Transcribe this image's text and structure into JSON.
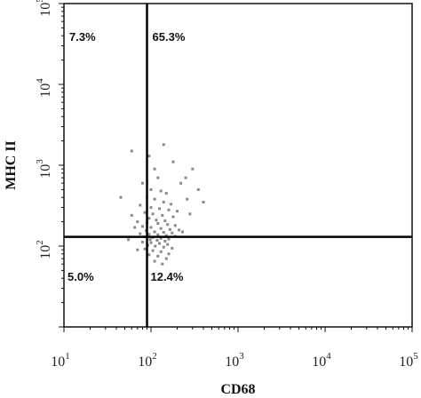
{
  "chart_data": {
    "type": "scatter",
    "xlabel": "CD68",
    "ylabel": "MHC II",
    "x_scale": "log",
    "y_scale": "log",
    "xlim": [
      10,
      100000
    ],
    "ylim": [
      10,
      100000
    ],
    "x_ticks": [
      {
        "value": 10,
        "base": "10",
        "exp": "1"
      },
      {
        "value": 100,
        "base": "10",
        "exp": "2"
      },
      {
        "value": 1000,
        "base": "10",
        "exp": "3"
      },
      {
        "value": 10000,
        "base": "10",
        "exp": "4"
      },
      {
        "value": 100000,
        "base": "10",
        "exp": "5"
      }
    ],
    "y_ticks": [
      {
        "value": 100,
        "base": "10",
        "exp": "2"
      },
      {
        "value": 1000,
        "base": "10",
        "exp": "3"
      },
      {
        "value": 10000,
        "base": "10",
        "exp": "4"
      },
      {
        "value": 100000,
        "base": "10",
        "exp": "5"
      }
    ],
    "gates": {
      "x": 90,
      "y": 130
    },
    "quadrants": [
      {
        "label": "7.3%",
        "position": "top-left"
      },
      {
        "label": "65.3%",
        "position": "top-right"
      },
      {
        "label": "5.0%",
        "position": "bottom-left"
      },
      {
        "label": "12.4%",
        "position": "bottom-right"
      }
    ],
    "points": [
      [
        95,
        1300
      ],
      [
        110,
        900
      ],
      [
        120,
        700
      ],
      [
        80,
        600
      ],
      [
        100,
        500
      ],
      [
        130,
        480
      ],
      [
        150,
        450
      ],
      [
        90,
        400
      ],
      [
        110,
        380
      ],
      [
        140,
        350
      ],
      [
        170,
        330
      ],
      [
        75,
        320
      ],
      [
        100,
        300
      ],
      [
        125,
        290
      ],
      [
        160,
        280
      ],
      [
        200,
        270
      ],
      [
        85,
        260
      ],
      [
        105,
        250
      ],
      [
        135,
        240
      ],
      [
        180,
        230
      ],
      [
        95,
        220
      ],
      [
        115,
        210
      ],
      [
        145,
        205
      ],
      [
        70,
        200
      ],
      [
        90,
        195
      ],
      [
        120,
        190
      ],
      [
        155,
        185
      ],
      [
        190,
        180
      ],
      [
        80,
        175
      ],
      [
        100,
        170
      ],
      [
        130,
        165
      ],
      [
        165,
        160
      ],
      [
        210,
        158
      ],
      [
        88,
        155
      ],
      [
        110,
        150
      ],
      [
        140,
        148
      ],
      [
        175,
        145
      ],
      [
        75,
        142
      ],
      [
        95,
        140
      ],
      [
        120,
        138
      ],
      [
        150,
        135
      ],
      [
        190,
        132
      ],
      [
        85,
        130
      ],
      [
        105,
        128
      ],
      [
        130,
        125
      ],
      [
        160,
        122
      ],
      [
        98,
        120
      ],
      [
        118,
        118
      ],
      [
        145,
        115
      ],
      [
        80,
        112
      ],
      [
        100,
        110
      ],
      [
        125,
        108
      ],
      [
        155,
        105
      ],
      [
        92,
        102
      ],
      [
        112,
        100
      ],
      [
        140,
        97
      ],
      [
        175,
        94
      ],
      [
        85,
        92
      ],
      [
        105,
        88
      ],
      [
        130,
        85
      ],
      [
        160,
        80
      ],
      [
        95,
        78
      ],
      [
        120,
        75
      ],
      [
        150,
        70
      ],
      [
        110,
        65
      ],
      [
        135,
        60
      ],
      [
        60,
        240
      ],
      [
        65,
        170
      ],
      [
        55,
        120
      ],
      [
        250,
        700
      ],
      [
        300,
        900
      ],
      [
        350,
        500
      ],
      [
        260,
        380
      ],
      [
        220,
        600
      ],
      [
        180,
        1100
      ],
      [
        140,
        1800
      ],
      [
        60,
        1500
      ],
      [
        45,
        400
      ],
      [
        280,
        250
      ],
      [
        400,
        350
      ],
      [
        230,
        150
      ],
      [
        70,
        90
      ]
    ],
    "point_color": "#8a8a8a",
    "line_color": "#000000"
  }
}
